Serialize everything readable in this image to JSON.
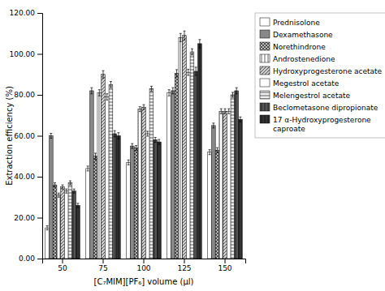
{
  "chart_data": {
    "type": "bar",
    "xlabel": "[C₇MIM][PF₆] volume (μl)",
    "ylabel": "Extraction efficiency (%)",
    "categories": [
      "50",
      "75",
      "100",
      "125",
      "150"
    ],
    "series": [
      {
        "name": "Prednisolone",
        "color": "#ffffff",
        "values": [
          15.0,
          44.0,
          47.0,
          81.0,
          52.0
        ],
        "errors": [
          1.0,
          1.2,
          1.2,
          1.5,
          1.2
        ]
      },
      {
        "name": "Dexamethasone",
        "color": "#888888",
        "values": [
          60.0,
          82.0,
          55.0,
          82.0,
          65.0
        ],
        "errors": [
          1.2,
          1.5,
          1.2,
          1.5,
          1.2
        ]
      },
      {
        "name": "Norethindrone",
        "color": "#bbbbbb",
        "values": [
          36.0,
          50.0,
          54.0,
          90.5,
          53.0
        ],
        "errors": [
          1.0,
          1.5,
          1.2,
          1.8,
          1.2
        ]
      },
      {
        "name": "Androstenedione",
        "color": "#ffffff",
        "values": [
          31.0,
          81.0,
          73.0,
          108.0,
          72.0
        ],
        "errors": [
          1.0,
          1.5,
          1.2,
          2.0,
          1.2
        ]
      },
      {
        "name": "Hydroxyprogesterone acetate",
        "color": "#cccccc",
        "values": [
          35.0,
          90.0,
          74.0,
          109.0,
          72.0
        ],
        "errors": [
          1.0,
          1.8,
          1.2,
          2.2,
          1.2
        ]
      },
      {
        "name": "Megestrol acetate",
        "color": "#ffffff",
        "values": [
          33.0,
          79.0,
          61.0,
          91.0,
          72.0
        ],
        "errors": [
          1.0,
          1.5,
          1.2,
          1.5,
          1.2
        ]
      },
      {
        "name": "Melengestrol acetate",
        "color": "#eeeeee",
        "values": [
          37.0,
          85.0,
          83.0,
          101.0,
          80.0
        ],
        "errors": [
          1.0,
          1.5,
          1.2,
          1.5,
          1.2
        ]
      },
      {
        "name": "Beclometasone dipropionate",
        "color": "#555555",
        "values": [
          33.0,
          61.0,
          58.0,
          91.5,
          82.0
        ],
        "errors": [
          1.0,
          1.5,
          1.2,
          2.0,
          1.5
        ]
      },
      {
        "name": "17 α-Hydroxyprogesterone\ncaproate",
        "color": "#333333",
        "values": [
          26.0,
          60.0,
          57.0,
          105.0,
          68.0
        ],
        "errors": [
          1.0,
          1.5,
          1.2,
          2.0,
          1.2
        ]
      }
    ],
    "ylim": [
      0,
      120
    ],
    "yticks": [
      {
        "value": 0.0,
        "label": "0.00"
      },
      {
        "value": 20.0,
        "label": "20.00"
      },
      {
        "value": 40.0,
        "label": "40.00"
      },
      {
        "value": 60.0,
        "label": "60.00"
      },
      {
        "value": 80.0,
        "label": "80.00"
      },
      {
        "value": 100.0,
        "label": "100.00"
      },
      {
        "value": 120.0,
        "label": "120.00"
      }
    ],
    "grid": false,
    "legend": "right"
  }
}
